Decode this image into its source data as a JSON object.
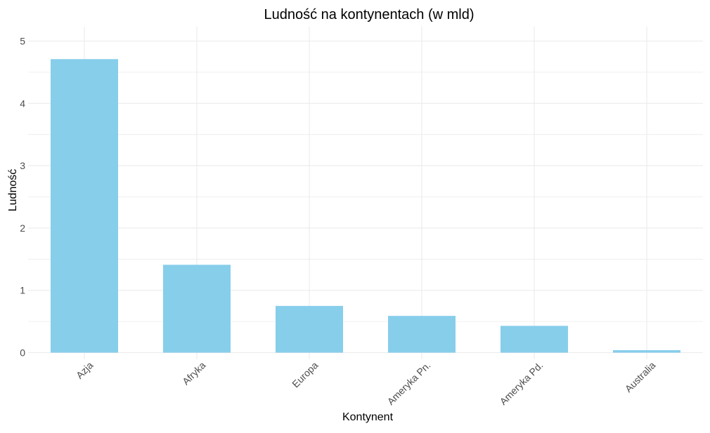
{
  "chart_data": {
    "type": "bar",
    "title": "Ludność na kontynentach (w mld)",
    "xlabel": "Kontynent",
    "ylabel": "Ludność",
    "categories": [
      "Azja",
      "Afryka",
      "Europa",
      "Ameryka Pn.",
      "Ameryka Pd.",
      "Australia"
    ],
    "values": [
      4.71,
      1.41,
      0.75,
      0.59,
      0.43,
      0.04
    ],
    "ylim": [
      0,
      5.2
    ],
    "yticks": [
      0,
      1,
      2,
      3,
      4,
      5
    ],
    "ytick_labels": [
      "0",
      "1",
      "2",
      "3",
      "4",
      "5"
    ],
    "bar_color": "#87CEEB",
    "grid": true,
    "grid_color": "#ebebeb",
    "legend": "none"
  }
}
